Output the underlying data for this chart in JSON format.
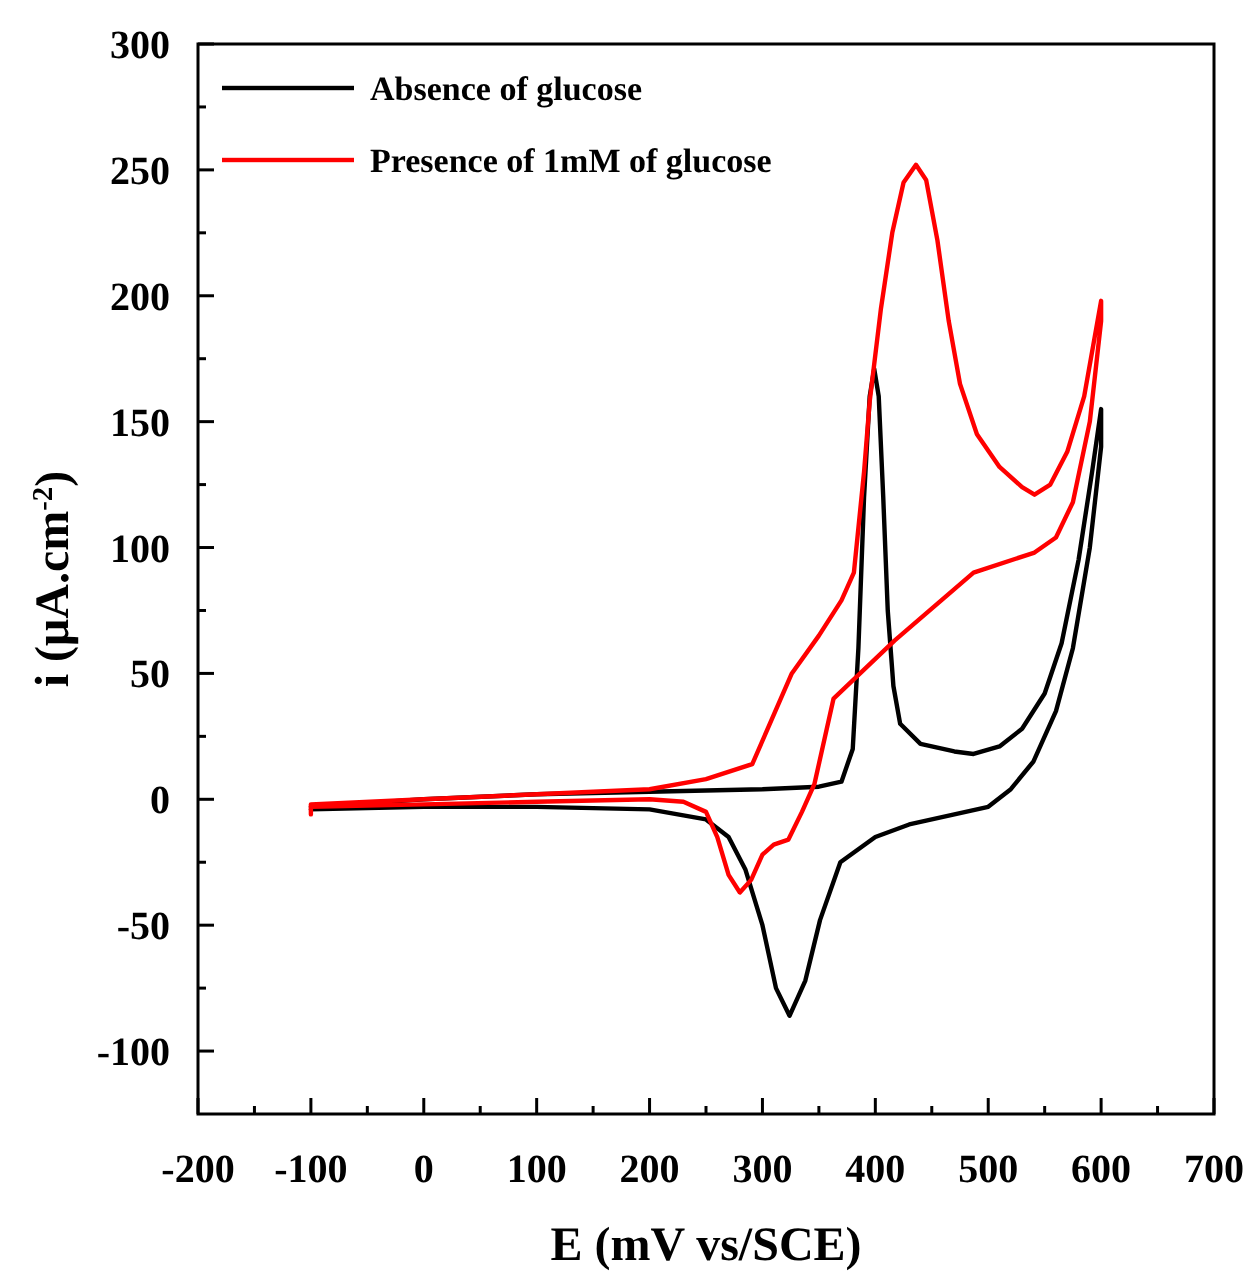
{
  "chart_data": {
    "type": "line",
    "xlabel": "E (mV vs/SCE)",
    "ylabel": "i (μA.cm$^{-2}$)",
    "xlim": [
      -200,
      700
    ],
    "ylim": [
      -125,
      300
    ],
    "xticks": [
      -200,
      {
        "value": -150,
        "label": null
      },
      -100,
      {
        "value": -50,
        "label": null
      },
      0,
      {
        "value": 50,
        "label": null
      },
      100,
      {
        "value": 150,
        "label": null
      },
      200,
      {
        "value": 250,
        "label": null
      },
      300,
      {
        "value": 350,
        "label": null
      },
      400,
      {
        "value": 450,
        "label": null
      },
      500,
      {
        "value": 550,
        "label": null
      },
      600,
      {
        "value": 650,
        "label": null
      },
      700
    ],
    "yticks": [
      -100,
      {
        "value": -75,
        "label": null
      },
      -50,
      {
        "value": -25,
        "label": null
      },
      0,
      {
        "value": 25,
        "label": null
      },
      50,
      {
        "value": 75,
        "label": null
      },
      100,
      {
        "value": 125,
        "label": null
      },
      150,
      {
        "value": 175,
        "label": null
      },
      200,
      {
        "value": 225,
        "label": null
      },
      250,
      {
        "value": 275,
        "label": null
      },
      300
    ],
    "legend": "top left",
    "grid": false,
    "marker": "none",
    "line_style": "solid",
    "series": [
      {
        "name": "Absence of glucose",
        "color": "#000000",
        "x": [
          -100,
          0,
          100,
          200,
          300,
          350,
          370,
          380,
          385,
          390,
          395,
          399,
          403,
          407,
          411,
          416,
          422,
          440,
          470,
          487,
          510,
          530,
          550,
          565,
          580,
          592,
          600,
          600,
          590,
          575,
          560,
          540,
          520,
          500,
          470,
          430,
          400,
          369,
          351,
          338,
          324,
          312,
          300,
          285,
          270,
          250,
          200,
          100,
          0,
          -100
        ],
        "values": [
          -3,
          0,
          2,
          3,
          4,
          5,
          7,
          20,
          60,
          120,
          160,
          171,
          160,
          120,
          75,
          45,
          30,
          22,
          19,
          18,
          21,
          28,
          42,
          62,
          95,
          130,
          155,
          140,
          100,
          60,
          35,
          15,
          4,
          -3,
          -6,
          -10,
          -15,
          -25,
          -48,
          -72,
          -86,
          -75,
          -50,
          -28,
          -15,
          -8,
          -4,
          -3,
          -3,
          -4
        ]
      },
      {
        "name": "Presence of 1mM of glucose",
        "color": "#ff0000",
        "x": [
          -100,
          -100,
          0,
          100,
          200,
          250,
          291,
          326,
          350,
          370,
          381,
          390,
          395,
          405,
          415,
          425,
          436,
          445,
          455,
          465,
          475,
          490,
          510,
          530,
          541,
          555,
          570,
          585,
          600,
          600,
          590,
          575,
          560,
          541,
          487,
          417,
          363,
          346,
          335,
          323,
          310,
          300,
          290,
          280,
          270,
          260,
          250,
          230,
          200,
          100,
          0,
          -100
        ],
        "values": [
          -6,
          -2,
          0,
          2,
          4,
          8,
          14,
          50,
          65,
          79,
          90,
          130,
          158,
          195,
          225,
          245,
          252,
          246,
          222,
          190,
          165,
          145,
          132,
          124,
          121,
          125,
          138,
          160,
          198,
          190,
          150,
          118,
          104,
          98,
          90,
          63,
          40,
          6,
          -5,
          -16,
          -18,
          -22,
          -32,
          -37,
          -30,
          -15,
          -5,
          -1,
          0,
          -1,
          -2,
          -3
        ]
      }
    ]
  }
}
